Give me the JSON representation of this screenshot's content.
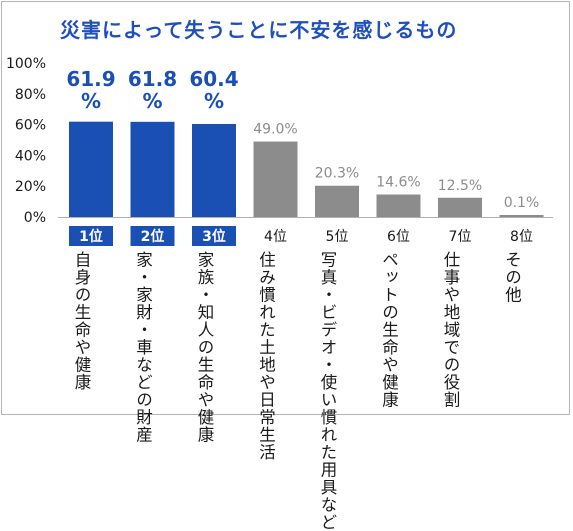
{
  "title": "災害によって失うことに不安を感じるもの",
  "chart_data": {
    "type": "bar",
    "categories": [
      "自身の生命や健康",
      "家・家財・車などの財産",
      "家族・知人の生命や健康",
      "住み慣れた土地や日常生活",
      "写真・ビデオ・使い慣れた用具など",
      "ペットの生命や健康",
      "仕事や地域での役割",
      "その他"
    ],
    "ranks": [
      "1位",
      "2位",
      "3位",
      "4位",
      "5位",
      "6位",
      "7位",
      "8位"
    ],
    "values": [
      61.9,
      61.8,
      60.4,
      49.0,
      20.3,
      14.6,
      12.5,
      0.1
    ],
    "value_labels": [
      "61.9%",
      "61.8%",
      "60.4%",
      "49.0%",
      "20.3%",
      "14.6%",
      "12.5%",
      "0.1%"
    ],
    "yticks": [
      "0%",
      "20%",
      "40%",
      "60%",
      "80%",
      "100%"
    ],
    "ylim": [
      0,
      100
    ],
    "title": "災害によって失うことに不安を感じるもの",
    "xlabel": "",
    "ylabel": "",
    "grid": false,
    "colors": {
      "top3": "#1a4fb4",
      "others": "#8c8c8c",
      "top_label": "#1a4fb4",
      "other_label": "#8c8c8c"
    }
  }
}
